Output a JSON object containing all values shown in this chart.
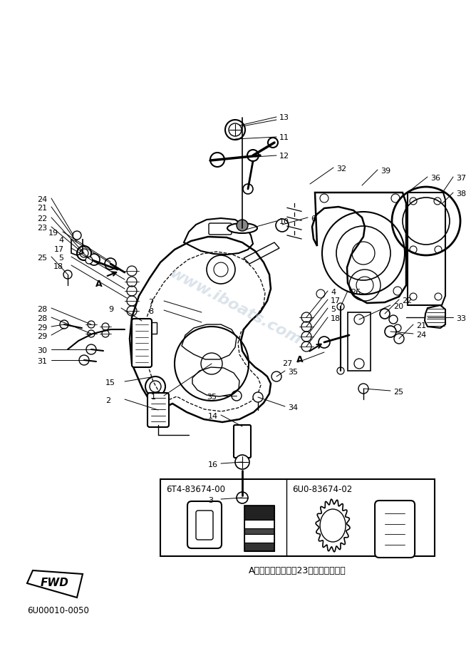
{
  "bg": "#ffffff",
  "lc": "#000000",
  "wm_color": "#b8c8d8",
  "watermark": "www.iboats.com",
  "part_id": "6U00010-0050",
  "left_pn": "6T4-83674-00",
  "right_pn": "6U0-83674-02",
  "bottom_text": "A部詳細（見出番号23識別用相異点）",
  "fig_w": 6.61,
  "fig_h": 9.13,
  "dpi": 100
}
